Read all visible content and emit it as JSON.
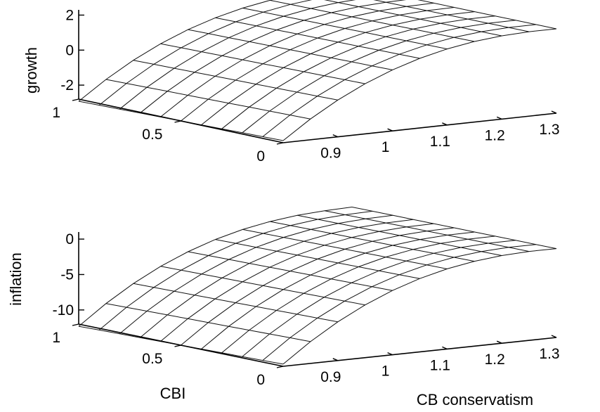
{
  "chart_data": [
    {
      "type": "surface",
      "zlabel": "growth",
      "xlabel": "",
      "ylabel": "",
      "x_axis": {
        "name": "CB conservatism",
        "range": [
          0.8,
          1.3
        ],
        "ticks": [
          0.9,
          1,
          1.1,
          1.2,
          1.3
        ],
        "tick_labels": [
          "0.9",
          "1",
          "1.1",
          "1.2",
          "1.3"
        ]
      },
      "y_axis": {
        "name": "CBI",
        "range": [
          0,
          1
        ],
        "ticks": [
          0,
          0.5,
          1
        ],
        "tick_labels": [
          "0",
          "0.5",
          "1"
        ]
      },
      "z_axis": {
        "range": [
          -2.8,
          2.3
        ],
        "ticks": [
          -2,
          0,
          2
        ],
        "tick_labels": [
          "-2",
          "0",
          "2"
        ]
      },
      "grid": false,
      "mesh": {
        "x": [
          0.8,
          0.85,
          0.9,
          0.95,
          1.0,
          1.05,
          1.1,
          1.15,
          1.2,
          1.25,
          1.3
        ],
        "y": [
          0,
          0.1,
          0.2,
          0.3,
          0.4,
          0.5,
          0.6,
          0.7,
          0.8,
          0.9,
          1.0
        ],
        "z_at_min_x": -2.8,
        "z_at_max_x": 2.0,
        "y_spread": 0.4
      }
    },
    {
      "type": "surface",
      "zlabel": "inflation",
      "xlabel": "CB conservatism",
      "ylabel": "CBI",
      "x_axis": {
        "name": "CB conservatism",
        "range": [
          0.8,
          1.3
        ],
        "ticks": [
          0.9,
          1,
          1.1,
          1.2,
          1.3
        ],
        "tick_labels": [
          "0.9",
          "1",
          "1.1",
          "1.2",
          "1.3"
        ]
      },
      "y_axis": {
        "name": "CBI",
        "range": [
          0,
          1
        ],
        "ticks": [
          0,
          0.5,
          1
        ],
        "tick_labels": [
          "0",
          "0.5",
          "1"
        ]
      },
      "z_axis": {
        "range": [
          -12,
          1
        ],
        "ticks": [
          -10,
          -5,
          0
        ],
        "tick_labels": [
          "-10",
          "-5",
          "0"
        ]
      },
      "grid": false,
      "mesh": {
        "x": [
          0.8,
          0.85,
          0.9,
          0.95,
          1.0,
          1.05,
          1.1,
          1.15,
          1.2,
          1.25,
          1.3
        ],
        "y": [
          0,
          0.1,
          0.2,
          0.3,
          0.4,
          0.5,
          0.6,
          0.7,
          0.8,
          0.9,
          1.0
        ],
        "z_at_min_x": -12,
        "z_at_max_x": 0.5,
        "y_spread": 1.0
      }
    }
  ]
}
